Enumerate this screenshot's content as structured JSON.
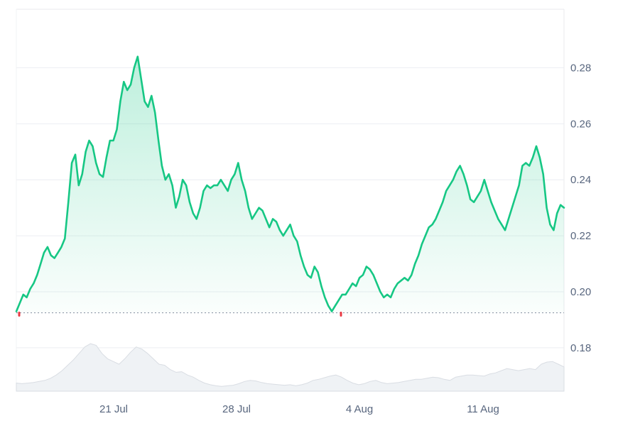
{
  "chart_data": {
    "type": "area",
    "x_axis": {
      "tick_labels": [
        "21 Jul",
        "28 Jul",
        "4 Aug",
        "11 Aug"
      ]
    },
    "y_axis": {
      "position": "right",
      "ticks": [
        0.18,
        0.2,
        0.22,
        0.24,
        0.26,
        0.28
      ],
      "tick_labels": [
        "0.18",
        "0.20",
        "0.22",
        "0.24",
        "0.26",
        "0.28"
      ],
      "range": [
        0.1645,
        0.3009
      ]
    },
    "grid": true,
    "reference_line": {
      "value": 0.1925,
      "style": "dotted"
    },
    "series": [
      {
        "values": [
          0.193,
          0.196,
          0.199,
          0.198,
          0.201,
          0.203,
          0.206,
          0.21,
          0.214,
          0.216,
          0.213,
          0.212,
          0.214,
          0.216,
          0.219,
          0.232,
          0.246,
          0.249,
          0.238,
          0.242,
          0.25,
          0.254,
          0.252,
          0.246,
          0.242,
          0.241,
          0.248,
          0.254,
          0.254,
          0.258,
          0.268,
          0.275,
          0.272,
          0.274,
          0.28,
          0.284,
          0.276,
          0.268,
          0.266,
          0.27,
          0.264,
          0.254,
          0.245,
          0.24,
          0.242,
          0.238,
          0.23,
          0.234,
          0.24,
          0.238,
          0.232,
          0.228,
          0.226,
          0.23,
          0.236,
          0.238,
          0.237,
          0.238,
          0.238,
          0.24,
          0.238,
          0.236,
          0.24,
          0.242,
          0.246,
          0.24,
          0.236,
          0.23,
          0.226,
          0.228,
          0.23,
          0.229,
          0.226,
          0.223,
          0.226,
          0.225,
          0.222,
          0.22,
          0.222,
          0.224,
          0.22,
          0.218,
          0.213,
          0.209,
          0.206,
          0.205,
          0.209,
          0.207,
          0.202,
          0.198,
          0.195,
          0.193,
          0.195,
          0.197,
          0.199,
          0.199,
          0.201,
          0.203,
          0.202,
          0.205,
          0.206,
          0.209,
          0.208,
          0.206,
          0.203,
          0.2,
          0.198,
          0.199,
          0.198,
          0.201,
          0.203,
          0.204,
          0.205,
          0.204,
          0.206,
          0.21,
          0.213,
          0.217,
          0.22,
          0.223,
          0.224,
          0.226,
          0.229,
          0.232,
          0.236,
          0.238,
          0.24,
          0.243,
          0.245,
          0.242,
          0.238,
          0.233,
          0.232,
          0.234,
          0.236,
          0.24,
          0.236,
          0.232,
          0.229,
          0.226,
          0.224,
          0.222,
          0.226,
          0.23,
          0.234,
          0.238,
          0.245,
          0.246,
          0.245,
          0.248,
          0.252,
          0.248,
          0.242,
          0.23,
          0.224,
          0.222,
          0.228,
          0.231,
          0.23
        ],
        "color": "#16c784"
      }
    ],
    "volume": {
      "values": [
        0.15,
        0.14,
        0.15,
        0.16,
        0.18,
        0.2,
        0.24,
        0.3,
        0.38,
        0.48,
        0.58,
        0.7,
        0.82,
        0.88,
        0.85,
        0.7,
        0.6,
        0.55,
        0.5,
        0.6,
        0.72,
        0.82,
        0.78,
        0.7,
        0.6,
        0.5,
        0.48,
        0.4,
        0.35,
        0.36,
        0.3,
        0.26,
        0.2,
        0.15,
        0.12,
        0.1,
        0.09,
        0.1,
        0.11,
        0.14,
        0.18,
        0.2,
        0.19,
        0.16,
        0.14,
        0.13,
        0.12,
        0.11,
        0.12,
        0.1,
        0.12,
        0.15,
        0.2,
        0.22,
        0.25,
        0.28,
        0.3,
        0.26,
        0.2,
        0.15,
        0.12,
        0.14,
        0.18,
        0.2,
        0.16,
        0.14,
        0.15,
        0.16,
        0.18,
        0.2,
        0.22,
        0.22,
        0.24,
        0.26,
        0.25,
        0.22,
        0.2,
        0.26,
        0.28,
        0.3,
        0.3,
        0.29,
        0.28,
        0.32,
        0.34,
        0.38,
        0.42,
        0.4,
        0.38,
        0.4,
        0.42,
        0.4,
        0.5,
        0.54,
        0.55,
        0.5,
        0.45
      ],
      "color": "#eff2f5",
      "stroke": "#d9dde3"
    }
  }
}
